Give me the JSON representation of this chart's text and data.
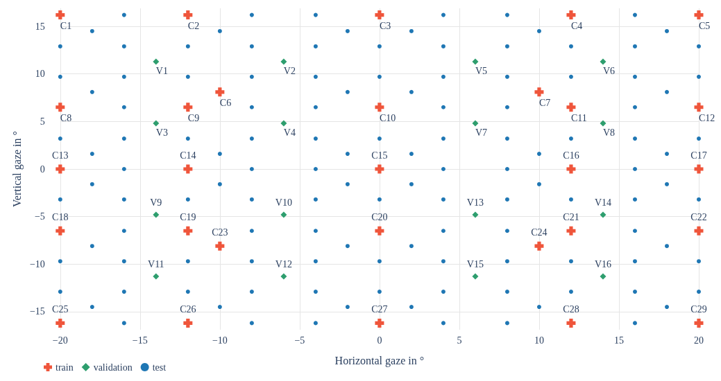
{
  "chart_data": {
    "type": "scatter",
    "xlabel": "Horizontal gaze in °",
    "ylabel": "Vertical gaze in °",
    "xlim": [
      -20,
      20
    ],
    "ylim": [
      -16.9,
      16.9
    ],
    "xticks": [
      {
        "value": -20,
        "label": "−20"
      },
      {
        "value": -15,
        "label": "−15"
      },
      {
        "value": -10,
        "label": "−10"
      },
      {
        "value": -5,
        "label": "−5"
      },
      0,
      5,
      10,
      15,
      20
    ],
    "yticks": [
      {
        "value": -15,
        "label": "−15"
      },
      {
        "value": -10,
        "label": "−10"
      },
      {
        "value": -5,
        "label": "−5"
      },
      0,
      5,
      10,
      15
    ],
    "grid": true,
    "legend": "bottom left",
    "series": [
      {
        "name": "train",
        "color": "#ef553b",
        "marker": "cross",
        "x": [
          -20,
          -12,
          0,
          12,
          20,
          -10,
          10,
          -20,
          -12,
          0,
          12,
          20,
          -20,
          -12,
          0,
          12,
          20,
          -20,
          -12,
          0,
          12,
          20,
          -10,
          10,
          -20,
          -12,
          0,
          12,
          20
        ],
        "values": [
          16.2,
          16.2,
          16.2,
          16.2,
          16.2,
          8.1,
          8.1,
          6.5,
          6.5,
          6.5,
          6.5,
          6.5,
          0,
          0,
          0,
          0,
          0,
          -6.5,
          -6.5,
          -6.5,
          -6.5,
          -6.5,
          -8.1,
          -8.1,
          -16.2,
          -16.2,
          -16.2,
          -16.2,
          -16.2
        ],
        "value_labels": [
          "C1",
          "C2",
          "C3",
          "C4",
          "C5",
          "C6",
          "C7",
          "C8",
          "C9",
          "C10",
          "C11",
          "C12",
          "C13",
          "C14",
          "C15",
          "C16",
          "C17",
          "C18",
          "C19",
          "C20",
          "C21",
          "C22",
          "C23",
          "C24",
          "C25",
          "C26",
          "C27",
          "C28",
          "C29"
        ]
      },
      {
        "name": "validation",
        "color": "#2e9e6e",
        "marker": "diamond",
        "x": [
          -14,
          -6,
          -14,
          -6,
          6,
          14,
          6,
          14,
          -14,
          -6,
          -14,
          -6,
          6,
          14,
          6,
          14
        ],
        "values": [
          11.3,
          11.3,
          4.8,
          4.8,
          11.3,
          11.3,
          4.8,
          4.8,
          -4.8,
          -4.8,
          -11.3,
          -11.3,
          -4.8,
          -4.8,
          -11.3,
          -11.3
        ],
        "value_labels": [
          "V1",
          "V2",
          "V3",
          "V4",
          "V5",
          "V6",
          "V7",
          "V8",
          "V9",
          "V10",
          "V11",
          "V12",
          "V13",
          "V14",
          "V15",
          "V16"
        ]
      },
      {
        "name": "test",
        "color": "#1f77b4",
        "marker": "circle",
        "x": [
          -20,
          -20,
          -20,
          -20,
          -20,
          -20,
          -18,
          -18,
          -18,
          -18,
          -18,
          -18,
          -16,
          -16,
          -16,
          -16,
          -16,
          -16,
          -16,
          -16,
          -16,
          -16,
          -16,
          -12,
          -12,
          -12,
          -12,
          -12,
          -12,
          -10,
          -10,
          -10,
          -10,
          -8,
          -8,
          -8,
          -8,
          -8,
          -8,
          -8,
          -8,
          -8,
          -8,
          -8,
          -4,
          -4,
          -4,
          -4,
          -4,
          -4,
          -4,
          -4,
          -4,
          -4,
          -4,
          -2,
          -2,
          -2,
          -2,
          -2,
          -2,
          0,
          0,
          0,
          0,
          0,
          0,
          2,
          2,
          2,
          2,
          2,
          2,
          4,
          4,
          4,
          4,
          4,
          4,
          4,
          4,
          4,
          4,
          4,
          8,
          8,
          8,
          8,
          8,
          8,
          8,
          8,
          8,
          8,
          8,
          10,
          10,
          10,
          10,
          12,
          12,
          12,
          12,
          12,
          12,
          16,
          16,
          16,
          16,
          16,
          16,
          16,
          16,
          16,
          16,
          16,
          18,
          18,
          18,
          18,
          18,
          18,
          20,
          20,
          20,
          20,
          20,
          20
        ],
        "values": [
          12.9,
          9.7,
          3.2,
          -3.2,
          -9.7,
          -12.9,
          14.5,
          8.1,
          1.6,
          -1.6,
          -8.1,
          -14.5,
          16.2,
          12.9,
          9.7,
          6.5,
          3.2,
          0,
          -3.2,
          -6.5,
          -9.7,
          -12.9,
          -16.2,
          12.9,
          9.7,
          3.2,
          -3.2,
          -9.7,
          -12.9,
          14.5,
          1.6,
          -1.6,
          -14.5,
          16.2,
          12.9,
          9.7,
          6.5,
          3.2,
          0,
          -3.2,
          -6.5,
          -9.7,
          -12.9,
          -16.2,
          16.2,
          12.9,
          9.7,
          6.5,
          3.2,
          0,
          -3.2,
          -6.5,
          -9.7,
          -12.9,
          -16.2,
          14.5,
          8.1,
          1.6,
          -1.6,
          -8.1,
          -14.5,
          12.9,
          9.7,
          3.2,
          -3.2,
          -9.7,
          -12.9,
          14.5,
          8.1,
          1.6,
          -1.6,
          -8.1,
          -14.5,
          16.2,
          12.9,
          9.7,
          6.5,
          3.2,
          0,
          -3.2,
          -6.5,
          -9.7,
          -12.9,
          -16.2,
          16.2,
          12.9,
          9.7,
          6.5,
          3.2,
          0,
          -3.2,
          -6.5,
          -9.7,
          -12.9,
          -16.2,
          14.5,
          1.6,
          -1.6,
          -14.5,
          12.9,
          9.7,
          3.2,
          -3.2,
          -9.7,
          -12.9,
          16.2,
          12.9,
          9.7,
          6.5,
          3.2,
          0,
          -3.2,
          -6.5,
          -9.7,
          -12.9,
          -16.2,
          14.5,
          8.1,
          1.6,
          -1.6,
          -8.1,
          -14.5,
          12.9,
          9.7,
          3.2,
          -3.2,
          -9.7,
          -12.9
        ]
      }
    ]
  }
}
